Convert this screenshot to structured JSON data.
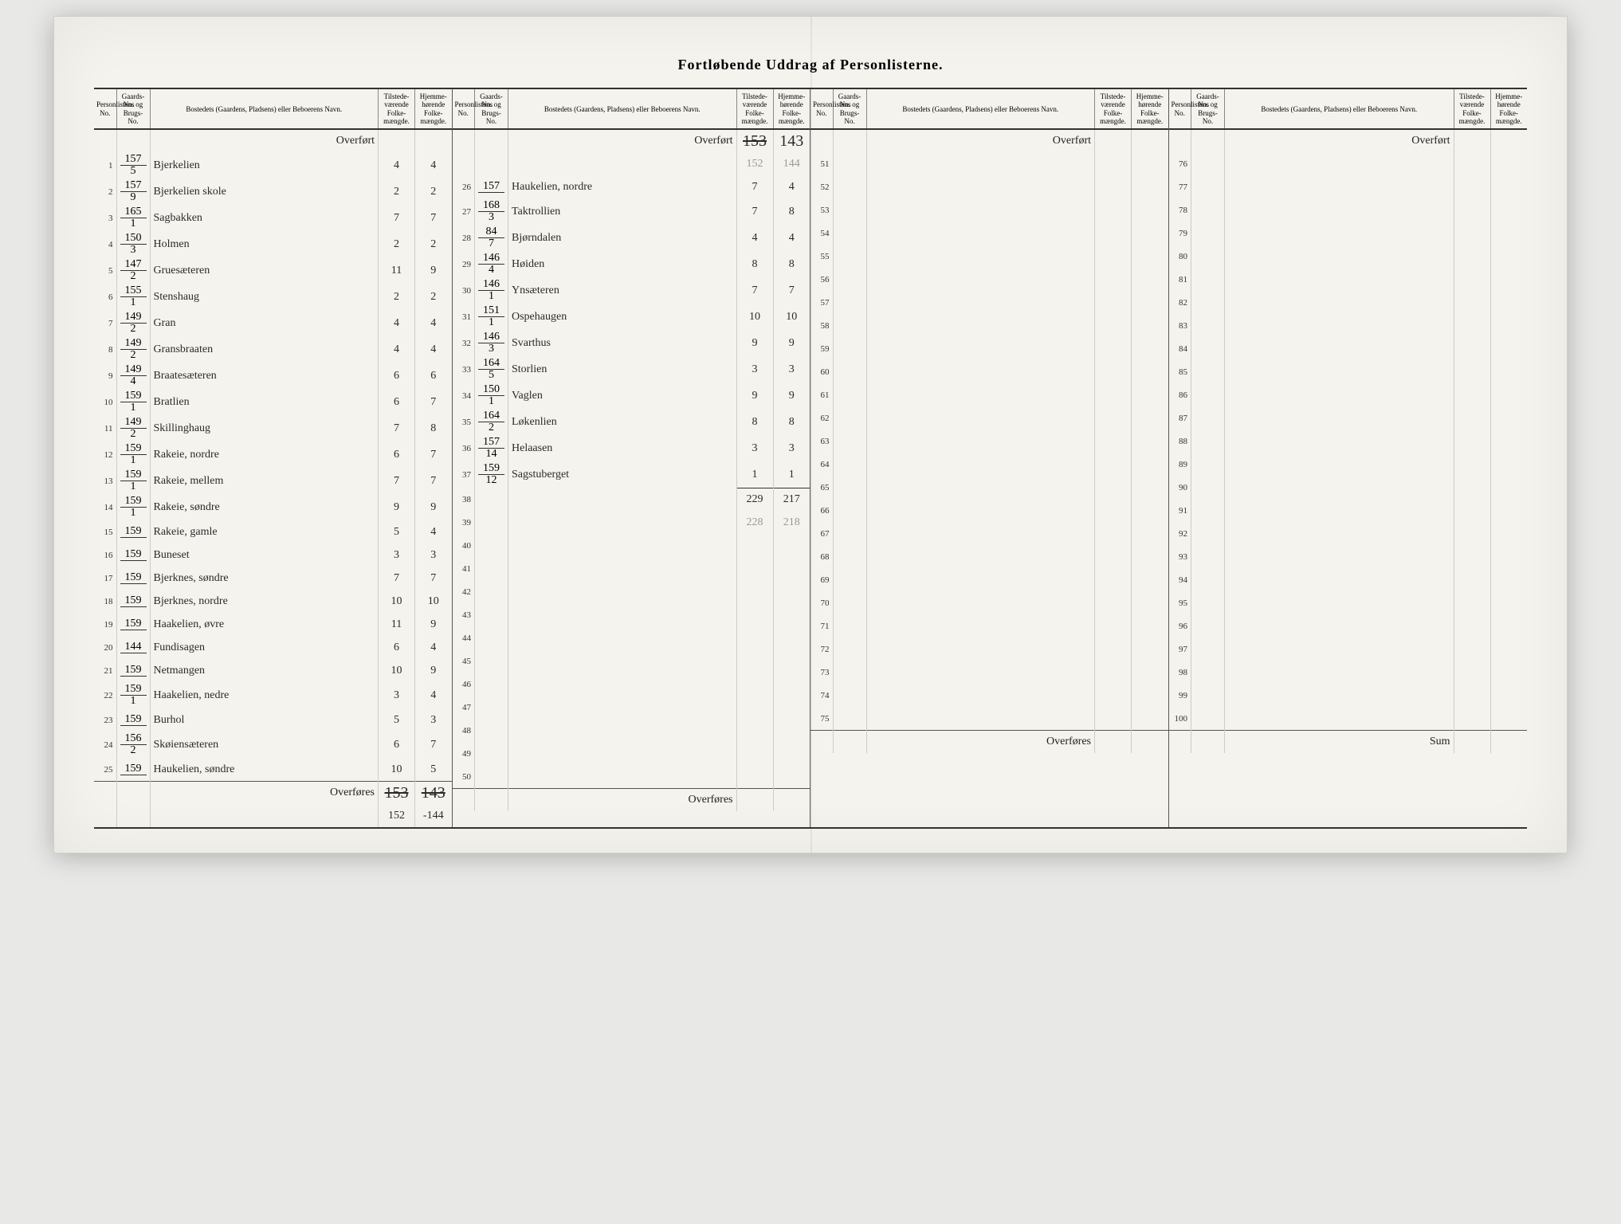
{
  "title": "Fortløbende Uddrag af Personlisterne.",
  "headers": {
    "pno": "Personlistens No.",
    "gno": "Gaards-No. og Brugs-No.",
    "name": "Bostedets (Gaardens, Pladsens) eller Beboerens Navn.",
    "n1": "Tilstede-værende Folke-mængde.",
    "n2": "Hjemme-hørende Folke-mængde."
  },
  "labels": {
    "overfort": "Overført",
    "overfores": "Overføres",
    "sum": "Sum"
  },
  "carry_in_b": {
    "n1": "153",
    "n2": "143",
    "n1_strike": true
  },
  "carry_note_b": {
    "n1": "152",
    "n2": "144"
  },
  "footer_a": {
    "n1": "153",
    "n2": "143",
    "n1_strike": true,
    "n2_strike": true
  },
  "footer_a_below": {
    "n1": "152",
    "n2": "-144"
  },
  "panelA": [
    {
      "no": "1",
      "g": "157/5",
      "name": "Bjerkelien",
      "n1": "4",
      "n2": "4"
    },
    {
      "no": "2",
      "g": "157/9",
      "name": "Bjerkelien skole",
      "n1": "2",
      "n2": "2"
    },
    {
      "no": "3",
      "g": "165/1",
      "name": "Sagbakken",
      "n1": "7",
      "n2": "7"
    },
    {
      "no": "4",
      "g": "150/3",
      "name": "Holmen",
      "n1": "2",
      "n2": "2"
    },
    {
      "no": "5",
      "g": "147/2",
      "name": "Gruesæteren",
      "n1": "11",
      "n2": "9"
    },
    {
      "no": "6",
      "g": "155/1",
      "name": "Stenshaug",
      "n1": "2",
      "n2": "2"
    },
    {
      "no": "7",
      "g": "149/2",
      "name": "Gran",
      "n1": "4",
      "n2": "4"
    },
    {
      "no": "8",
      "g": "149/2",
      "name": "Gransbraaten",
      "n1": "4",
      "n2": "4"
    },
    {
      "no": "9",
      "g": "149/4",
      "name": "Braatesæteren",
      "n1": "6",
      "n2": "6"
    },
    {
      "no": "10",
      "g": "159/1",
      "name": "Bratlien",
      "n1": "6",
      "n2": "7"
    },
    {
      "no": "11",
      "g": "149/2",
      "name": "Skillinghaug",
      "n1": "7",
      "n2": "8"
    },
    {
      "no": "12",
      "g": "159/1",
      "name": "Rakeie, nordre",
      "n1": "6",
      "n2": "7"
    },
    {
      "no": "13",
      "g": "159/1",
      "name": "Rakeie, mellem",
      "n1": "7",
      "n2": "7"
    },
    {
      "no": "14",
      "g": "159/1",
      "name": "Rakeie, søndre",
      "n1": "9",
      "n2": "9"
    },
    {
      "no": "15",
      "g": "159/",
      "name": "Rakeie, gamle",
      "n1": "5",
      "n2": "4"
    },
    {
      "no": "16",
      "g": "159/",
      "name": "Buneset",
      "n1": "3",
      "n2": "3"
    },
    {
      "no": "17",
      "g": "159/",
      "name": "Bjerknes, søndre",
      "n1": "7",
      "n2": "7"
    },
    {
      "no": "18",
      "g": "159/",
      "name": "Bjerknes, nordre",
      "n1": "10",
      "n2": "10"
    },
    {
      "no": "19",
      "g": "159/",
      "name": "Haakelien, øvre",
      "n1": "11",
      "n2": "9"
    },
    {
      "no": "20",
      "g": "144/",
      "name": "Fundisagen",
      "n1": "6",
      "n2": "4"
    },
    {
      "no": "21",
      "g": "159/",
      "name": "Netmangen",
      "n1": "10",
      "n2": "9"
    },
    {
      "no": "22",
      "g": "159/1",
      "name": "Haakelien, nedre",
      "n1": "3",
      "n2": "4"
    },
    {
      "no": "23",
      "g": "159/",
      "name": "Burhol",
      "n1": "5",
      "n2": "3"
    },
    {
      "no": "24",
      "g": "156/2",
      "name": "Skøiensæteren",
      "n1": "6",
      "n2": "7"
    },
    {
      "no": "25",
      "g": "159/",
      "name": "Haukelien, søndre",
      "n1": "10",
      "n2": "5"
    }
  ],
  "panelB": [
    {
      "no": "26",
      "g": "157/",
      "name": "Haukelien, nordre",
      "n1": "7",
      "n2": "4"
    },
    {
      "no": "27",
      "g": "168/3",
      "name": "Taktrollien",
      "n1": "7",
      "n2": "8"
    },
    {
      "no": "28",
      "g": "84/7",
      "name": "Bjørndalen",
      "n1": "4",
      "n2": "4"
    },
    {
      "no": "29",
      "g": "146/4",
      "name": "Høiden",
      "n1": "8",
      "n2": "8"
    },
    {
      "no": "30",
      "g": "146/1",
      "name": "Ynsæteren",
      "n1": "7",
      "n2": "7"
    },
    {
      "no": "31",
      "g": "151/1",
      "name": "Ospehaugen",
      "n1": "10",
      "n2": "10"
    },
    {
      "no": "32",
      "g": "146/3",
      "name": "Svarthus",
      "n1": "9",
      "n2": "9"
    },
    {
      "no": "33",
      "g": "164/5",
      "name": "Storlien",
      "n1": "3",
      "n2": "3"
    },
    {
      "no": "34",
      "g": "150/1",
      "name": "Vaglen",
      "n1": "9",
      "n2": "9"
    },
    {
      "no": "35",
      "g": "164/2",
      "name": "Løkenlien",
      "n1": "8",
      "n2": "8"
    },
    {
      "no": "36",
      "g": "157/14",
      "name": "Helaasen",
      "n1": "3",
      "n2": "3"
    },
    {
      "no": "37",
      "g": "159/12",
      "name": "Sagstuberget",
      "n1": "1",
      "n2": "1"
    },
    {
      "no": "38",
      "g": "",
      "name": "",
      "n1": "229",
      "n2": "217",
      "total": true
    },
    {
      "no": "39",
      "g": "",
      "name": "",
      "n1": "228",
      "n2": "218",
      "faint": true
    },
    {
      "no": "40",
      "g": "",
      "name": "",
      "n1": "",
      "n2": ""
    },
    {
      "no": "41",
      "g": "",
      "name": "",
      "n1": "",
      "n2": ""
    },
    {
      "no": "42",
      "g": "",
      "name": "",
      "n1": "",
      "n2": ""
    },
    {
      "no": "43",
      "g": "",
      "name": "",
      "n1": "",
      "n2": ""
    },
    {
      "no": "44",
      "g": "",
      "name": "",
      "n1": "",
      "n2": ""
    },
    {
      "no": "45",
      "g": "",
      "name": "",
      "n1": "",
      "n2": ""
    },
    {
      "no": "46",
      "g": "",
      "name": "",
      "n1": "",
      "n2": ""
    },
    {
      "no": "47",
      "g": "",
      "name": "",
      "n1": "",
      "n2": ""
    },
    {
      "no": "48",
      "g": "",
      "name": "",
      "n1": "",
      "n2": ""
    },
    {
      "no": "49",
      "g": "",
      "name": "",
      "n1": "",
      "n2": ""
    },
    {
      "no": "50",
      "g": "",
      "name": "",
      "n1": "",
      "n2": ""
    }
  ],
  "panelC_start": 51,
  "panelD_start": 76
}
